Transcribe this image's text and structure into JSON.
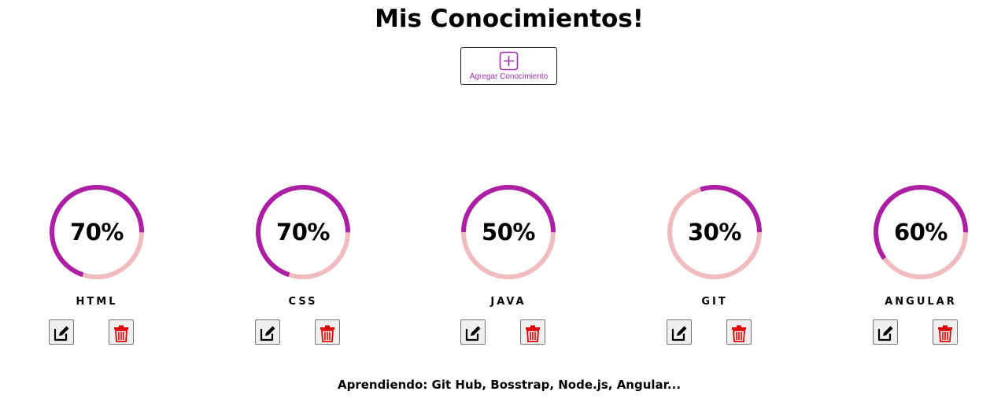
{
  "header": {
    "title": "Mis Conocimientos!"
  },
  "add_button": {
    "label": "Agregar Conocimiento",
    "icon": "plus-square-icon"
  },
  "colors": {
    "progress": "#ac1fa5",
    "track": "#f0bcbf",
    "add_accent": "#9b2fae",
    "delete_icon": "#e00000"
  },
  "skills": [
    {
      "name": "HTML",
      "percent_label": "70%",
      "value": 70
    },
    {
      "name": "CSS",
      "percent_label": "70%",
      "value": 70
    },
    {
      "name": "JAVA",
      "percent_label": "50%",
      "value": 50
    },
    {
      "name": "GIT",
      "percent_label": "30%",
      "value": 30
    },
    {
      "name": "ANGULAR",
      "percent_label": "60%",
      "value": 60
    }
  ],
  "actions": {
    "edit_icon": "edit-icon",
    "delete_icon": "trash-icon"
  },
  "footer": {
    "text": "Aprendiendo: Git Hub, Bosstrap, Node.js, Angular..."
  }
}
